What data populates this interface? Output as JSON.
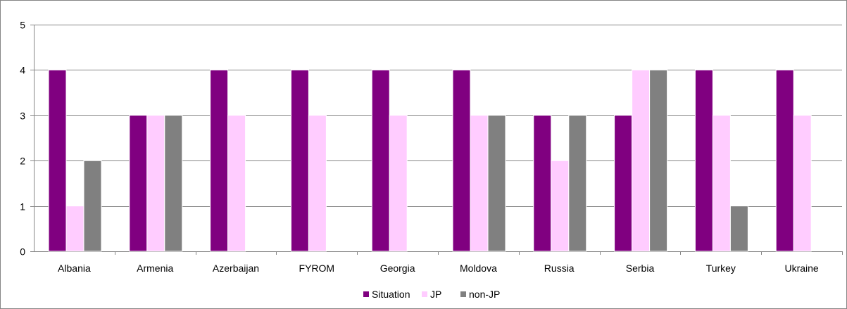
{
  "chart_data": {
    "type": "bar",
    "categories": [
      "Albania",
      "Armenia",
      "Azerbaijan",
      "FYROM",
      "Georgia",
      "Moldova",
      "Russia",
      "Serbia",
      "Turkey",
      "Ukraine"
    ],
    "series": [
      {
        "name": "Situation",
        "color": "#800080",
        "values": [
          4,
          3,
          4,
          4,
          4,
          4,
          3,
          3,
          4,
          4
        ]
      },
      {
        "name": "JP",
        "color": "#FFCCFF",
        "values": [
          1,
          3,
          3,
          3,
          3,
          3,
          2,
          4,
          3,
          3
        ]
      },
      {
        "name": "non-JP",
        "color": "#808080",
        "values": [
          2,
          3,
          null,
          null,
          null,
          3,
          3,
          4,
          1,
          null
        ]
      }
    ],
    "yticks": [
      "0",
      "1",
      "2",
      "3",
      "4",
      "5"
    ],
    "ylim": [
      0,
      5
    ],
    "grid": true,
    "legend": "bottom"
  }
}
